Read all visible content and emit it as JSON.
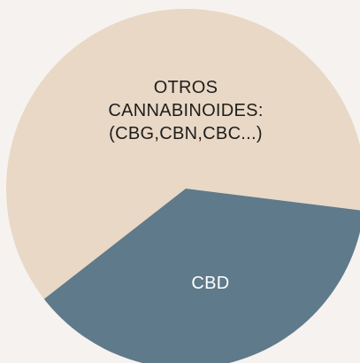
{
  "chart_data": {
    "type": "pie",
    "categories": [
      "OTROS CANNABINOIDES: (CBG,CBN,CBC...)",
      "CBD"
    ],
    "values": [
      62.5,
      37.5
    ],
    "colors": [
      "#e8d8c5",
      "#5f7a8a"
    ]
  }
}
